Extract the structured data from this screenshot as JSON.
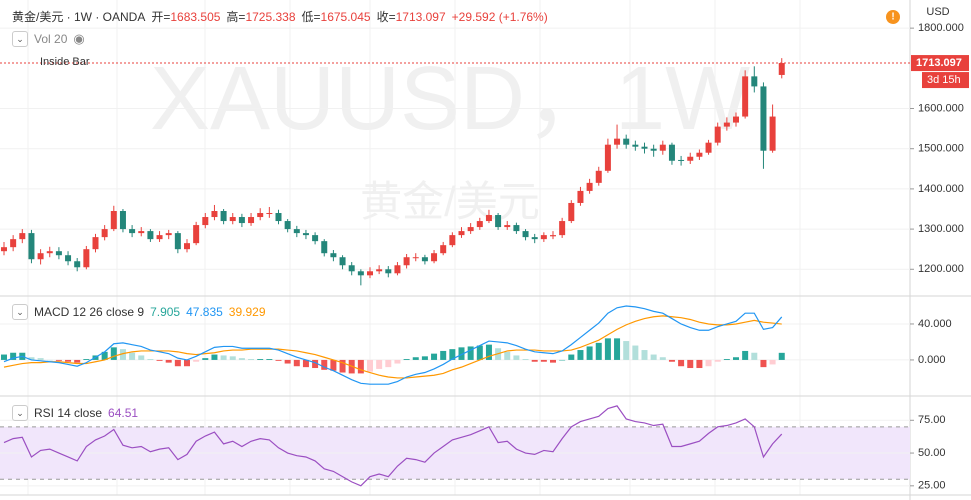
{
  "header": {
    "symbol": "黄金/美元 · 1W · OANDA",
    "ohlc": [
      {
        "label": "开=",
        "value": "1683.505"
      },
      {
        "label": "高=",
        "value": "1725.338"
      },
      {
        "label": "低=",
        "value": "1675.045"
      },
      {
        "label": "收=",
        "value": "1713.097"
      }
    ],
    "change": "+29.592 (+1.76%)",
    "currency": "USD",
    "volume_label": "Vol 20",
    "pattern_label": "Inside Bar",
    "watermark": "XAUUSD，1W",
    "watermark_sub": "黄金/美元",
    "countdown": "3d 15h"
  },
  "chart_data": [
    {
      "type": "candlestick",
      "up_color": "#e8413c",
      "down_color": "#24867a",
      "last_price_label": "1713.097",
      "ylim": [
        1136,
        1870
      ],
      "yticks": [
        {
          "value": 1800,
          "label": "1800.000"
        },
        {
          "value": 1600,
          "label": "1600.000"
        },
        {
          "value": 1500,
          "label": "1500.000"
        },
        {
          "value": 1400,
          "label": "1400.000"
        },
        {
          "value": 1300,
          "label": "1300.000"
        },
        {
          "value": 1200,
          "label": "1200.000"
        }
      ],
      "open": [
        1245,
        1255,
        1275,
        1290,
        1225,
        1240,
        1245,
        1235,
        1220,
        1205,
        1250,
        1280,
        1300,
        1345,
        1300,
        1290,
        1295,
        1275,
        1285,
        1290,
        1250,
        1265,
        1310,
        1330,
        1345,
        1320,
        1330,
        1315,
        1330,
        1338,
        1340,
        1320,
        1300,
        1290,
        1285,
        1270,
        1240,
        1230,
        1210,
        1195,
        1185,
        1195,
        1200,
        1190,
        1210,
        1228,
        1230,
        1220,
        1240,
        1260,
        1285,
        1295,
        1305,
        1320,
        1335,
        1305,
        1310,
        1295,
        1280,
        1275,
        1282,
        1285,
        1320,
        1365,
        1395,
        1415,
        1445,
        1510,
        1525,
        1510,
        1505,
        1500,
        1495,
        1510,
        1472,
        1470,
        1480,
        1490,
        1515,
        1555,
        1565,
        1580,
        1680,
        1655,
        1495,
        1683.505
      ],
      "high": [
        1268,
        1285,
        1300,
        1298,
        1250,
        1256,
        1255,
        1245,
        1228,
        1258,
        1288,
        1310,
        1358,
        1350,
        1310,
        1305,
        1300,
        1295,
        1298,
        1295,
        1275,
        1318,
        1340,
        1360,
        1350,
        1340,
        1338,
        1340,
        1352,
        1355,
        1348,
        1325,
        1308,
        1298,
        1292,
        1275,
        1248,
        1235,
        1218,
        1200,
        1205,
        1210,
        1208,
        1218,
        1238,
        1240,
        1236,
        1248,
        1268,
        1292,
        1305,
        1315,
        1328,
        1348,
        1340,
        1320,
        1316,
        1300,
        1288,
        1292,
        1295,
        1328,
        1372,
        1405,
        1425,
        1455,
        1525,
        1560,
        1535,
        1520,
        1515,
        1510,
        1520,
        1515,
        1482,
        1490,
        1498,
        1522,
        1565,
        1578,
        1590,
        1695,
        1705,
        1665,
        1610,
        1725.338
      ],
      "low": [
        1235,
        1245,
        1265,
        1215,
        1212,
        1230,
        1225,
        1210,
        1195,
        1200,
        1242,
        1272,
        1295,
        1292,
        1280,
        1282,
        1268,
        1268,
        1275,
        1240,
        1242,
        1260,
        1302,
        1322,
        1312,
        1312,
        1305,
        1308,
        1322,
        1328,
        1312,
        1292,
        1280,
        1275,
        1262,
        1232,
        1220,
        1200,
        1185,
        1160,
        1178,
        1188,
        1180,
        1185,
        1202,
        1220,
        1212,
        1215,
        1235,
        1255,
        1278,
        1288,
        1298,
        1315,
        1298,
        1298,
        1288,
        1272,
        1265,
        1268,
        1275,
        1278,
        1315,
        1358,
        1388,
        1408,
        1440,
        1500,
        1500,
        1495,
        1488,
        1480,
        1485,
        1460,
        1458,
        1462,
        1472,
        1485,
        1508,
        1545,
        1555,
        1575,
        1640,
        1450,
        1490,
        1675.045
      ],
      "close": [
        1255,
        1275,
        1290,
        1225,
        1240,
        1245,
        1235,
        1220,
        1205,
        1250,
        1280,
        1300,
        1345,
        1300,
        1290,
        1295,
        1275,
        1285,
        1290,
        1250,
        1265,
        1310,
        1330,
        1345,
        1320,
        1330,
        1315,
        1330,
        1340,
        1340,
        1320,
        1300,
        1290,
        1285,
        1270,
        1240,
        1230,
        1210,
        1195,
        1185,
        1195,
        1200,
        1190,
        1210,
        1230,
        1230,
        1220,
        1240,
        1260,
        1285,
        1295,
        1305,
        1320,
        1335,
        1305,
        1310,
        1295,
        1280,
        1275,
        1285,
        1285,
        1320,
        1365,
        1395,
        1415,
        1445,
        1510,
        1525,
        1510,
        1505,
        1500,
        1495,
        1510,
        1470,
        1470,
        1480,
        1490,
        1515,
        1555,
        1565,
        1580,
        1680,
        1655,
        1495,
        1580,
        1713.097
      ]
    },
    {
      "type": "macd",
      "label": "MACD 12 26 close 9",
      "histogram_label": "7.905",
      "macd_label": "47.835",
      "signal_label": "39.929",
      "macd_color": "#2196f3",
      "signal_color": "#ff9800",
      "hist_colors": [
        "#26a69a",
        "#b2dfdb",
        "#ef5350",
        "#ffcdd2"
      ],
      "ylim": [
        -39,
        70
      ],
      "yticks": [
        {
          "value": 40,
          "label": "40.000"
        },
        {
          "value": 0,
          "label": "0.000"
        }
      ],
      "histogram": [
        6,
        8,
        8,
        3,
        2,
        0,
        -1,
        -2,
        -3,
        1,
        5,
        9,
        14,
        12,
        8,
        5,
        1,
        -1,
        -3,
        -7,
        -7,
        -2,
        2,
        6,
        5,
        4,
        2,
        1,
        1,
        1,
        -1,
        -4,
        -7,
        -8,
        -9,
        -11,
        -12,
        -14,
        -15,
        -15,
        -13,
        -10,
        -8,
        -4,
        1,
        3,
        4,
        7,
        10,
        12,
        14,
        15,
        16,
        17,
        13,
        9,
        5,
        1,
        -2,
        -2,
        -3,
        0,
        6,
        11,
        15,
        19,
        24,
        24,
        21,
        16,
        11,
        6,
        3,
        -2,
        -7,
        -9,
        -9,
        -7,
        -2,
        1,
        3,
        10,
        8,
        -8,
        -5,
        7.905
      ],
      "macd": [
        -2,
        2,
        4,
        0,
        -1,
        -2,
        -3,
        -5,
        -7,
        -3,
        3,
        9,
        18,
        19,
        17,
        15,
        11,
        9,
        7,
        2,
        0,
        4,
        9,
        14,
        15,
        15,
        13,
        13,
        13,
        13,
        11,
        7,
        3,
        0,
        -3,
        -8,
        -12,
        -17,
        -22,
        -26,
        -27,
        -27,
        -27,
        -24,
        -19,
        -16,
        -14,
        -10,
        -5,
        1,
        6,
        11,
        16,
        21,
        20,
        19,
        16,
        12,
        9,
        8,
        7,
        10,
        17,
        25,
        33,
        41,
        52,
        58,
        60,
        59,
        57,
        54,
        52,
        46,
        40,
        36,
        33,
        33,
        37,
        40,
        43,
        52,
        52,
        34,
        36,
        47.835
      ],
      "signal": [
        -8,
        -6,
        -4,
        -3,
        -3,
        -2,
        -2,
        -3,
        -4,
        -4,
        -2,
        0,
        4,
        7,
        9,
        10,
        10,
        10,
        10,
        9,
        7,
        6,
        7,
        8,
        10,
        11,
        11,
        12,
        12,
        12,
        12,
        11,
        10,
        8,
        6,
        3,
        0,
        -3,
        -7,
        -11,
        -14,
        -17,
        -19,
        -20,
        -20,
        -19,
        -18,
        -17,
        -15,
        -11,
        -8,
        -4,
        0,
        4,
        7,
        10,
        11,
        11,
        11,
        10,
        10,
        10,
        11,
        14,
        18,
        22,
        28,
        34,
        39,
        43,
        46,
        48,
        49,
        48,
        47,
        45,
        42,
        40,
        39,
        39,
        40,
        42,
        44,
        42,
        41,
        39.929
      ]
    },
    {
      "type": "rsi",
      "label": "RSI 14 close",
      "value_label": "64.51",
      "color": "#9b4fc2",
      "band": [
        30,
        70
      ],
      "band_color": "#f1e6fb",
      "ylim": [
        18,
        92
      ],
      "yticks": [
        {
          "value": 75,
          "label": "75.00"
        },
        {
          "value": 50,
          "label": "50.00"
        },
        {
          "value": 25,
          "label": "25.00"
        }
      ],
      "values": [
        58,
        61,
        62,
        47,
        52,
        53,
        50,
        47,
        44,
        55,
        60,
        63,
        68,
        56,
        54,
        55,
        51,
        53,
        54,
        45,
        49,
        59,
        63,
        66,
        57,
        59,
        55,
        59,
        61,
        60,
        54,
        50,
        48,
        47,
        44,
        38,
        36,
        32,
        28,
        25,
        32,
        34,
        32,
        40,
        46,
        45,
        43,
        50,
        55,
        60,
        62,
        64,
        67,
        70,
        58,
        59,
        53,
        50,
        49,
        52,
        51,
        61,
        70,
        74,
        76,
        78,
        84,
        86,
        76,
        74,
        73,
        71,
        72,
        55,
        55,
        57,
        59,
        65,
        70,
        71,
        73,
        76,
        70,
        47,
        57,
        64.51
      ]
    }
  ]
}
